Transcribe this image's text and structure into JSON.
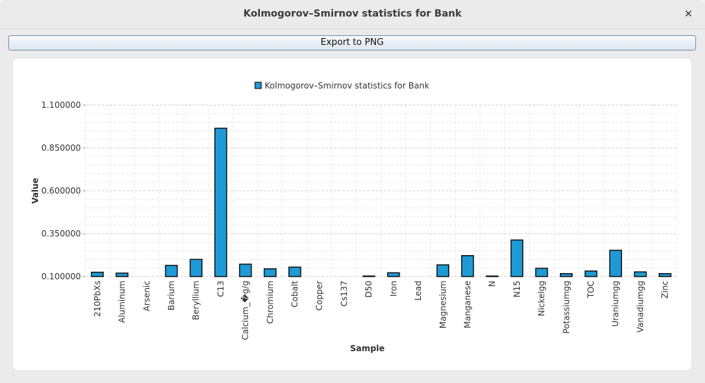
{
  "window": {
    "title": "Kolmogorov–Smirnov statistics for Bank"
  },
  "toolbar": {
    "export_label": "Export to PNG"
  },
  "icons": {
    "close": "close-icon"
  },
  "colors": {
    "bar_fill": "#1e9ad6",
    "bar_stroke": "#111111"
  },
  "chart_data": {
    "type": "bar",
    "title": "",
    "legend": {
      "entries": [
        "Kolmogorov–Smirnov statistics for Bank"
      ],
      "placement": "top-center"
    },
    "xlabel": "Sample",
    "ylabel": "Value",
    "ylim": [
      0.1,
      1.1
    ],
    "yticks": [
      "0.100000",
      "0.350000",
      "0.600000",
      "0.850000",
      "1.100000"
    ],
    "ytick_values": [
      0.1,
      0.35,
      0.6,
      0.85,
      1.1
    ],
    "grid": true,
    "categories": [
      "210PbXs",
      "Aluminum",
      "Arsenic",
      "Barium",
      "Beryllium",
      "C13",
      "Calcium_�g/g",
      "Chromium",
      "Cobalt",
      "Copper",
      "Cs137",
      "D50",
      "Iron",
      "Lead",
      "Magnesium",
      "Manganese",
      "N",
      "N15",
      "Nickelgg",
      "Potassiumgg",
      "TOC",
      "Uraniumgg",
      "Vanadiumgg",
      "Zinc"
    ],
    "series": [
      {
        "name": "Kolmogorov–Smirnov statistics for Bank",
        "values": [
          0.125,
          0.12,
          0.1,
          0.165,
          0.2,
          0.965,
          0.172,
          0.145,
          0.155,
          0.1,
          0.1,
          0.103,
          0.122,
          0.1,
          0.168,
          0.222,
          0.103,
          0.313,
          0.148,
          0.117,
          0.132,
          0.253,
          0.127,
          0.117
        ]
      }
    ]
  }
}
